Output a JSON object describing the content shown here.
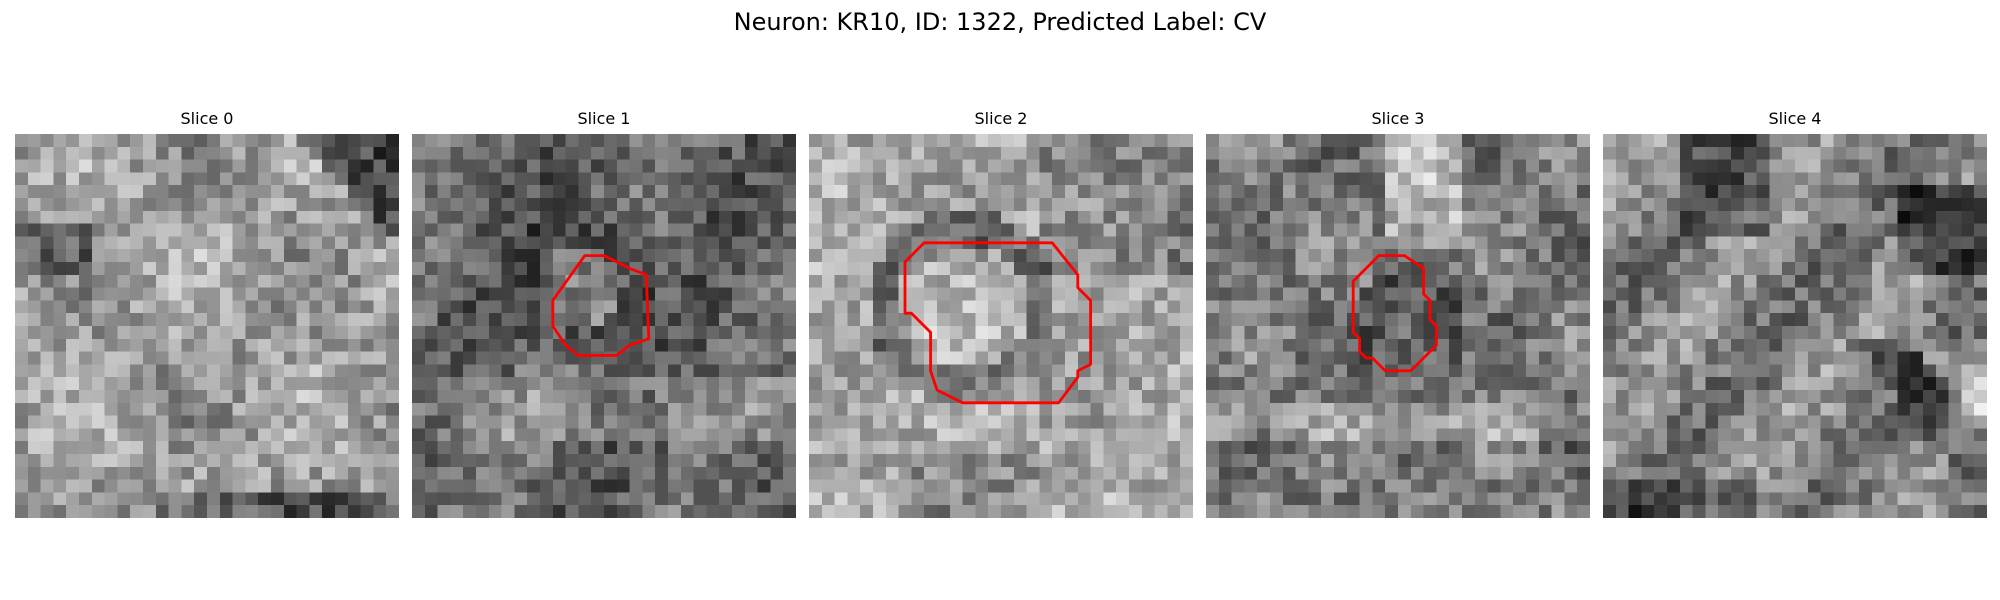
{
  "figure": {
    "title": "Neuron: KR10, ID: 1322, Predicted Label: CV"
  },
  "contour_color": "#ff0000",
  "colormap": "gray",
  "slices": [
    {
      "label": "Slice 0",
      "has_contour": false
    },
    {
      "label": "Slice 1",
      "has_contour": true
    },
    {
      "label": "Slice 2",
      "has_contour": true
    },
    {
      "label": "Slice 3",
      "has_contour": true
    },
    {
      "label": "Slice 4",
      "has_contour": false
    }
  ]
}
